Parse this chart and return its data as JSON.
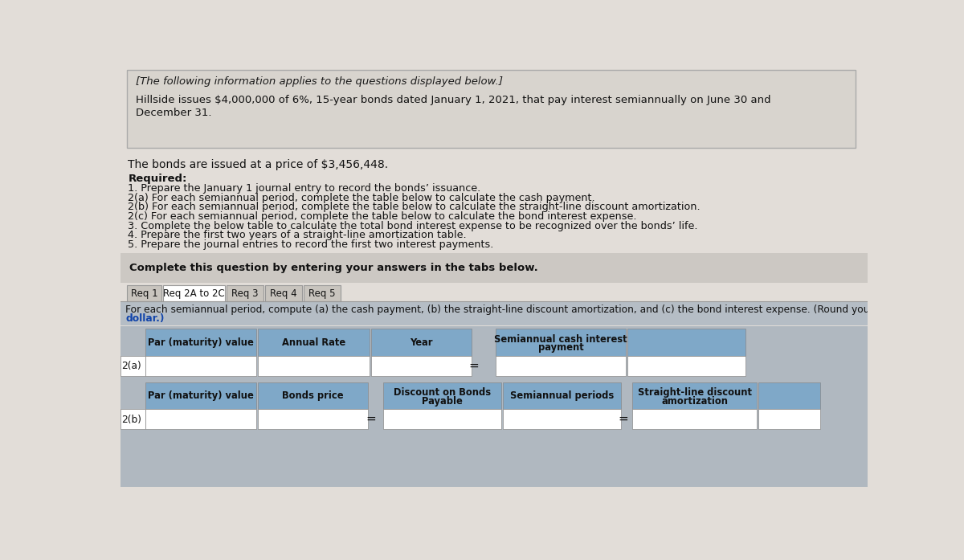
{
  "page_bg": "#e2ddd8",
  "box1_bg": "#d8d4ce",
  "box1_border": "#aaaaaa",
  "italic_text": "[The following information applies to the questions displayed below.]",
  "main_text_line1": "Hillside issues $4,000,000 of 6%, 15-year bonds dated January 1, 2021, that pay interest semiannually on June 30 and",
  "main_text_line2": "December 31.",
  "price_text": "The bonds are issued at a price of $3,456,448.",
  "required_label": "Required:",
  "req_items": [
    "1. Prepare the January 1 journal entry to record the bonds’ issuance.",
    "2(a) For each semiannual period, complete the table below to calculate the cash payment.",
    "2(b) For each semiannual period, complete the table below to calculate the straight-line discount amortization.",
    "2(c) For each semiannual period, complete the table below to calculate the bond interest expense.",
    "3. Complete the below table to calculate the total bond interest expense to be recognized over the bonds’ life.",
    "4. Prepare the first two years of a straight-line amortization table.",
    "5. Prepare the journal entries to record the first two interest payments."
  ],
  "complete_text": "Complete this question by entering your answers in the tabs below.",
  "complete_bg": "#ccc8c3",
  "tabs": [
    "Req 1",
    "Req 2A to 2C",
    "Req 3",
    "Req 4",
    "Req 5"
  ],
  "active_tab": 1,
  "tab_active_bg": "#ffffff",
  "tab_inactive_bg": "#c8c4be",
  "instruction_line1": "For each semiannual period, compute (a) the cash payment, (b) the straight-line discount amortization, and (c) the bond interest expense. (Round your final answers to t",
  "instruction_line2": "dollar.)",
  "inst_bg": "#b5bdc5",
  "table_bg": "#b0b8c0",
  "hdr_color": "#7fa8c8",
  "cell_bg": "#ffffff",
  "cell_border": "#888888",
  "header_2a": [
    "Par (maturity) value",
    "Annual Rate",
    "Year",
    "Semiannual cash interest\npayment",
    ""
  ],
  "header_2b": [
    "Par (maturity) value",
    "Bonds price",
    "Discount on Bonds\nPayable",
    "Semiannual periods",
    "Straight-line discount\namortization",
    ""
  ],
  "row_2a_label": "2(a)",
  "row_2b_label": "2(b)"
}
